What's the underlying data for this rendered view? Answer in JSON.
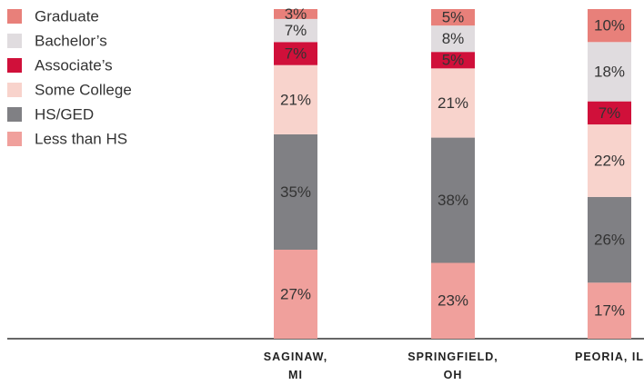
{
  "chart_data": {
    "type": "stacked_bar",
    "categories": [
      "SAGINAW, MI",
      "SPRINGFIELD, OH",
      "PEORIA, IL"
    ],
    "ylim": [
      0,
      100
    ],
    "legend": "top-left",
    "series": [
      {
        "name": "Graduate",
        "color": "#e8807a",
        "values": [
          3,
          5,
          10
        ],
        "value_labels": [
          "3%",
          "5%",
          "10%"
        ]
      },
      {
        "name": "Bachelor’s",
        "color": "#e0dcdf",
        "values": [
          7,
          8,
          18
        ],
        "value_labels": [
          "7%",
          "8%",
          "18%"
        ]
      },
      {
        "name": "Associate’s",
        "color": "#d0103a",
        "values": [
          7,
          5,
          7
        ],
        "value_labels": [
          "7%",
          "5%",
          "7%"
        ]
      },
      {
        "name": "Some College",
        "color": "#f8d3cc",
        "values": [
          21,
          21,
          22
        ],
        "value_labels": [
          "21%",
          "21%",
          "22%"
        ]
      },
      {
        "name": "HS/GED",
        "color": "#808084",
        "values": [
          35,
          38,
          26
        ],
        "value_labels": [
          "35%",
          "38%",
          "26%"
        ]
      },
      {
        "name": "Less than HS",
        "color": "#f0a09c",
        "values": [
          27,
          23,
          17
        ],
        "value_labels": [
          "27%",
          "23%",
          "17%"
        ]
      }
    ]
  }
}
